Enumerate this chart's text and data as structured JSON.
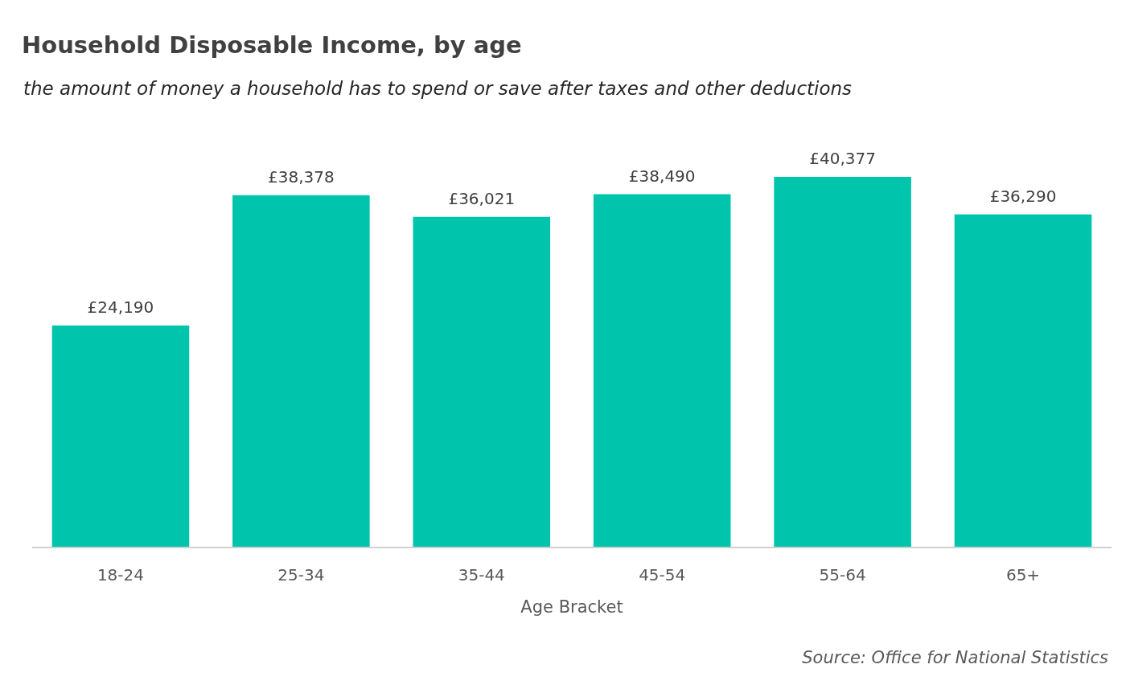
{
  "chart_data": {
    "type": "bar",
    "title": "Household Disposable Income, by age",
    "subtitle": "the amount of money a household has to spend or save after taxes and other deductions",
    "xlabel": "Age Bracket",
    "categories": [
      "18-24",
      "25-34",
      "35-44",
      "45-54",
      "55-64",
      "65+"
    ],
    "values": [
      24190,
      38378,
      36021,
      38490,
      40377,
      36290
    ],
    "value_labels": [
      "£24,190",
      "£38,378",
      "£36,021",
      "£38,490",
      "£40,377",
      "£36,290"
    ],
    "color": "#00c4ab",
    "annotations": [
      "Source: Office for National Statistics"
    ],
    "grid": false
  }
}
